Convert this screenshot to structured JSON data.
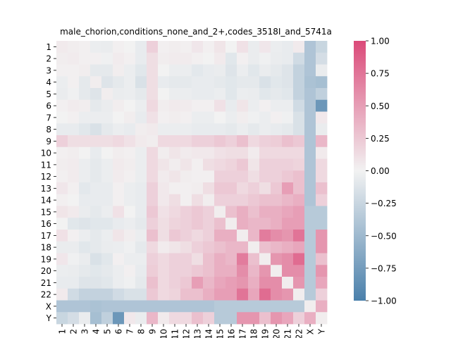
{
  "chart_data": {
    "type": "heatmap",
    "title": "male_chorion,conditions_none_and_2+,codes_3518I_and_5741a",
    "labels": [
      "1",
      "2",
      "3",
      "4",
      "5",
      "6",
      "7",
      "8",
      "9",
      "10",
      "11",
      "12",
      "13",
      "14",
      "15",
      "16",
      "17",
      "18",
      "19",
      "20",
      "21",
      "22",
      "X",
      "Y"
    ],
    "colorbar": {
      "vmin": -1.0,
      "vmax": 1.0,
      "ticks": [
        "1.00",
        "0.75",
        "0.50",
        "0.25",
        "0.00",
        "−0.25",
        "−0.50",
        "−0.75",
        "−1.00"
      ],
      "ticks_values": [
        1.0,
        0.75,
        0.5,
        0.25,
        0.0,
        -0.25,
        -0.5,
        -0.75,
        -1.0
      ]
    },
    "colormap": {
      "negative": "#4a80ab",
      "center": "#f2f2f2",
      "positive": "#db4a79"
    },
    "matrix": [
      [
        0.05,
        0.03,
        0.02,
        -0.04,
        -0.05,
        0.02,
        0.0,
        -0.06,
        0.2,
        0.02,
        0.03,
        0.02,
        0.07,
        0.02,
        0.08,
        0.0,
        0.1,
        -0.05,
        0.07,
        -0.04,
        -0.06,
        0.05,
        -0.4,
        -0.25
      ],
      [
        0.03,
        0.04,
        0.02,
        0.02,
        -0.02,
        0.04,
        0.02,
        -0.06,
        0.12,
        0.03,
        0.04,
        0.04,
        0.02,
        0.0,
        0.05,
        -0.1,
        0.02,
        -0.05,
        -0.02,
        -0.05,
        -0.06,
        -0.2,
        -0.4,
        -0.18
      ],
      [
        0.02,
        0.02,
        0.03,
        -0.08,
        -0.08,
        0.03,
        -0.04,
        -0.1,
        0.12,
        0.0,
        -0.04,
        -0.04,
        -0.09,
        -0.06,
        -0.05,
        -0.12,
        -0.04,
        -0.1,
        -0.05,
        -0.08,
        -0.12,
        -0.28,
        -0.4,
        -0.05
      ],
      [
        -0.04,
        0.02,
        -0.08,
        0.03,
        -0.12,
        -0.08,
        -0.04,
        -0.15,
        0.12,
        -0.06,
        -0.08,
        -0.08,
        -0.06,
        -0.06,
        -0.08,
        -0.1,
        -0.08,
        -0.08,
        -0.15,
        -0.1,
        -0.12,
        -0.28,
        -0.42,
        -0.45
      ],
      [
        -0.05,
        -0.02,
        -0.08,
        -0.12,
        0.03,
        -0.05,
        -0.04,
        -0.08,
        0.12,
        0.0,
        -0.04,
        -0.04,
        -0.06,
        -0.06,
        -0.04,
        -0.1,
        -0.04,
        -0.05,
        -0.1,
        -0.08,
        -0.1,
        -0.28,
        -0.4,
        -0.3
      ],
      [
        0.02,
        0.04,
        0.03,
        -0.08,
        -0.05,
        0.03,
        0.0,
        -0.04,
        0.15,
        0.03,
        0.05,
        0.04,
        0.02,
        0.02,
        0.1,
        -0.06,
        0.08,
        -0.04,
        0.02,
        -0.04,
        -0.04,
        -0.2,
        -0.4,
        -0.8
      ],
      [
        0.0,
        0.02,
        -0.04,
        -0.04,
        -0.04,
        0.0,
        0.03,
        -0.06,
        0.1,
        0.02,
        0.03,
        0.02,
        -0.04,
        -0.04,
        0.0,
        -0.04,
        0.03,
        -0.02,
        -0.04,
        0.02,
        -0.02,
        -0.15,
        -0.4,
        0.06
      ],
      [
        -0.06,
        -0.06,
        -0.1,
        -0.15,
        -0.08,
        -0.04,
        -0.06,
        0.03,
        0.05,
        -0.04,
        -0.04,
        -0.04,
        -0.06,
        -0.06,
        -0.06,
        -0.08,
        -0.04,
        -0.08,
        -0.04,
        -0.06,
        -0.08,
        -0.15,
        -0.4,
        -0.05
      ],
      [
        0.2,
        0.12,
        0.12,
        0.12,
        0.12,
        0.15,
        0.1,
        0.05,
        0.03,
        0.15,
        0.15,
        0.15,
        0.2,
        0.2,
        0.25,
        0.2,
        0.3,
        0.15,
        0.2,
        0.22,
        0.3,
        0.25,
        -0.4,
        0.35
      ],
      [
        0.02,
        0.03,
        0.0,
        -0.06,
        0.0,
        0.03,
        0.02,
        -0.04,
        0.15,
        0.03,
        0.08,
        0.04,
        0.06,
        0.06,
        0.1,
        0.12,
        0.12,
        0.04,
        0.15,
        0.15,
        0.15,
        0.15,
        -0.4,
        0.05
      ],
      [
        0.03,
        0.04,
        -0.04,
        -0.08,
        -0.04,
        0.05,
        0.03,
        -0.04,
        0.15,
        0.08,
        0.03,
        0.08,
        0.02,
        0.12,
        0.15,
        0.18,
        0.25,
        0.08,
        0.2,
        0.2,
        0.2,
        0.18,
        -0.4,
        0.15
      ],
      [
        0.02,
        0.04,
        -0.04,
        -0.08,
        -0.04,
        0.04,
        0.02,
        -0.04,
        0.15,
        0.04,
        0.08,
        0.03,
        0.02,
        0.02,
        0.2,
        0.2,
        0.2,
        0.12,
        0.2,
        0.2,
        0.25,
        0.3,
        -0.4,
        0.15
      ],
      [
        0.07,
        0.02,
        -0.09,
        -0.06,
        -0.06,
        0.02,
        -0.04,
        -0.06,
        0.2,
        0.06,
        0.02,
        0.02,
        0.03,
        0.12,
        0.25,
        0.25,
        0.15,
        0.2,
        0.12,
        0.25,
        0.5,
        0.3,
        -0.4,
        0.3
      ],
      [
        0.02,
        0.0,
        -0.06,
        -0.06,
        -0.06,
        0.02,
        -0.04,
        -0.06,
        0.2,
        0.06,
        0.12,
        0.02,
        0.12,
        0.03,
        0.2,
        0.2,
        0.2,
        0.25,
        0.3,
        0.3,
        0.35,
        0.4,
        -0.4,
        0.2
      ],
      [
        0.08,
        0.05,
        -0.05,
        -0.08,
        -0.04,
        0.1,
        0.0,
        -0.06,
        0.25,
        0.1,
        0.15,
        0.2,
        0.25,
        0.2,
        0.03,
        0.3,
        0.4,
        0.3,
        0.4,
        0.4,
        0.45,
        0.5,
        -0.35,
        -0.35
      ],
      [
        0.0,
        -0.1,
        -0.12,
        -0.1,
        -0.1,
        -0.06,
        -0.04,
        -0.08,
        0.2,
        0.12,
        0.18,
        0.2,
        0.25,
        0.2,
        0.3,
        0.03,
        0.4,
        0.35,
        0.35,
        0.4,
        0.5,
        0.5,
        -0.35,
        -0.35
      ],
      [
        0.1,
        0.02,
        -0.04,
        -0.08,
        -0.04,
        0.08,
        0.03,
        -0.04,
        0.3,
        0.12,
        0.25,
        0.2,
        0.15,
        0.2,
        0.4,
        0.4,
        0.03,
        0.35,
        0.7,
        0.6,
        0.55,
        0.75,
        -0.35,
        0.55
      ],
      [
        -0.05,
        -0.05,
        -0.1,
        -0.08,
        -0.05,
        -0.04,
        -0.02,
        -0.08,
        0.15,
        0.04,
        0.08,
        0.12,
        0.2,
        0.25,
        0.3,
        0.35,
        0.35,
        0.03,
        0.3,
        0.35,
        0.4,
        0.45,
        -0.35,
        0.55
      ],
      [
        0.07,
        -0.02,
        -0.05,
        -0.15,
        -0.1,
        0.02,
        -0.04,
        -0.04,
        0.2,
        0.15,
        0.2,
        0.2,
        0.12,
        0.3,
        0.4,
        0.35,
        0.7,
        0.3,
        0.03,
        0.55,
        0.6,
        0.8,
        -0.35,
        0.3
      ],
      [
        -0.04,
        -0.05,
        -0.08,
        -0.1,
        -0.08,
        -0.04,
        0.02,
        -0.06,
        0.22,
        0.15,
        0.2,
        0.2,
        0.25,
        0.3,
        0.4,
        0.4,
        0.6,
        0.35,
        0.55,
        0.03,
        0.6,
        0.6,
        -0.35,
        0.55
      ],
      [
        -0.06,
        -0.06,
        -0.12,
        -0.12,
        -0.1,
        -0.04,
        -0.02,
        -0.08,
        0.3,
        0.15,
        0.2,
        0.25,
        0.5,
        0.35,
        0.45,
        0.5,
        0.55,
        0.4,
        0.6,
        0.6,
        0.03,
        0.55,
        -0.35,
        0.45
      ],
      [
        0.05,
        -0.2,
        -0.28,
        -0.28,
        -0.28,
        -0.2,
        -0.15,
        -0.15,
        0.25,
        0.15,
        0.18,
        0.3,
        0.3,
        0.4,
        0.5,
        0.5,
        0.75,
        0.45,
        0.8,
        0.6,
        0.55,
        0.03,
        -0.35,
        0.2
      ],
      [
        -0.4,
        -0.4,
        -0.4,
        -0.42,
        -0.4,
        -0.4,
        -0.4,
        -0.4,
        -0.4,
        -0.4,
        -0.4,
        -0.4,
        -0.4,
        -0.4,
        -0.35,
        -0.35,
        -0.35,
        -0.35,
        -0.35,
        -0.35,
        -0.35,
        -0.35,
        0.03,
        0.4
      ],
      [
        -0.25,
        -0.18,
        -0.05,
        -0.45,
        -0.3,
        -0.8,
        0.06,
        -0.05,
        0.35,
        0.05,
        0.15,
        0.15,
        0.3,
        0.2,
        -0.35,
        -0.35,
        0.55,
        0.55,
        0.3,
        0.55,
        0.45,
        0.2,
        0.4,
        0.03
      ]
    ]
  }
}
